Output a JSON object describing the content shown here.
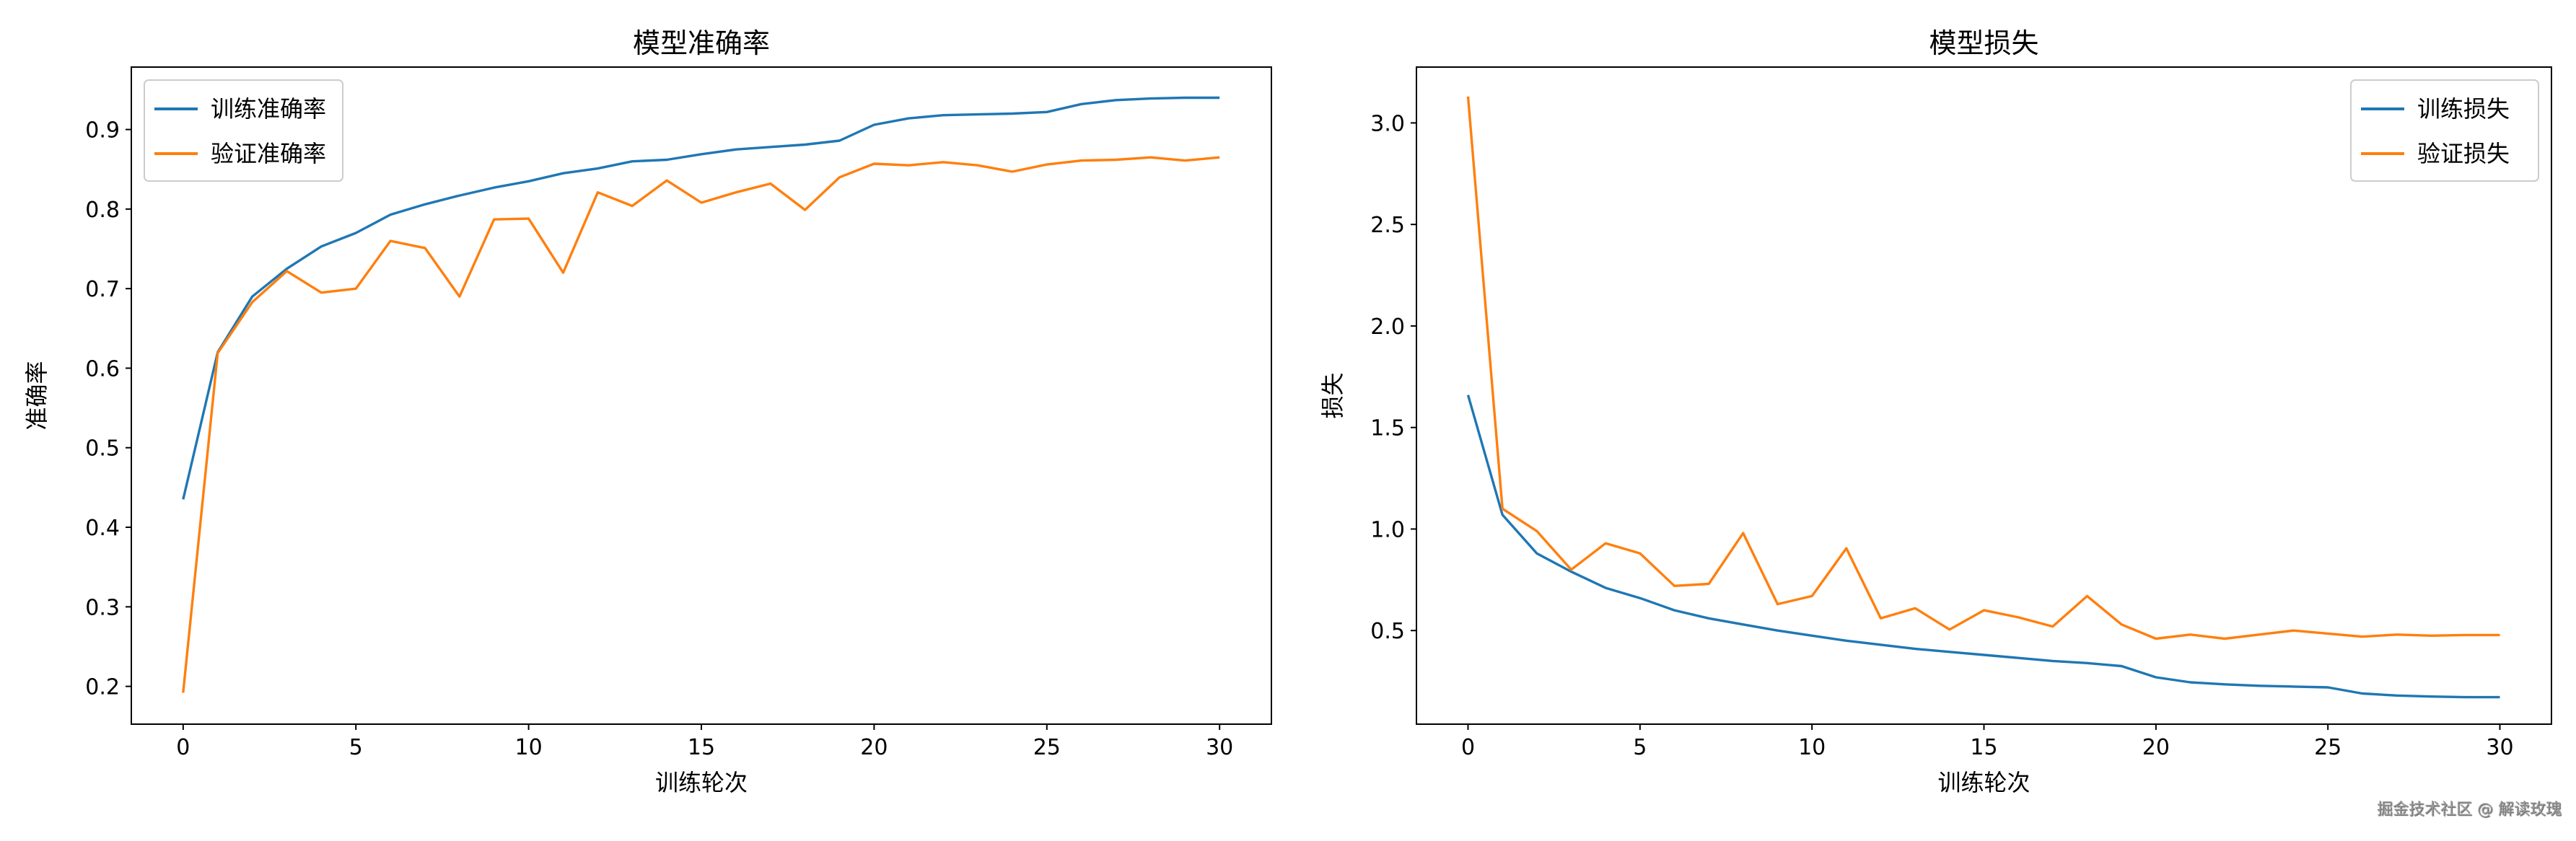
{
  "watermark": "掘金技术社区 @ 解读玫瑰",
  "colors": {
    "train": "#1f77b4",
    "val": "#ff7f0e"
  },
  "chart_data": [
    {
      "type": "line",
      "title": "模型准确率",
      "xlabel": "训练轮次",
      "ylabel": "准确率",
      "xlim": [
        -1.5,
        31.5
      ],
      "ylim": [
        0.1525,
        0.9785
      ],
      "xticks": [
        0,
        5,
        10,
        15,
        20,
        25,
        30
      ],
      "yticks": [
        0.2,
        0.3,
        0.4,
        0.5,
        0.6,
        0.7,
        0.8,
        0.9
      ],
      "legend": "upper-left",
      "x": [
        0,
        1,
        2,
        3,
        4,
        5,
        6,
        7,
        8,
        9,
        10,
        11,
        12,
        13,
        14,
        15,
        16,
        17,
        18,
        19,
        20,
        21,
        22,
        23,
        24,
        25,
        26,
        27,
        28,
        29,
        30
      ],
      "series": [
        {
          "name": "训练准确率",
          "color": "#1f77b4",
          "values": [
            0.435,
            0.62,
            0.69,
            0.725,
            0.753,
            0.77,
            0.793,
            0.806,
            0.817,
            0.827,
            0.835,
            0.845,
            0.851,
            0.86,
            0.862,
            0.869,
            0.875,
            0.878,
            0.881,
            0.886,
            0.906,
            0.914,
            0.918,
            0.919,
            0.92,
            0.922,
            0.932,
            0.937,
            0.939,
            0.94,
            0.94
          ]
        },
        {
          "name": "验证准确率",
          "color": "#ff7f0e",
          "values": [
            0.192,
            0.619,
            0.683,
            0.722,
            0.695,
            0.7,
            0.76,
            0.751,
            0.69,
            0.787,
            0.788,
            0.72,
            0.821,
            0.804,
            0.836,
            0.808,
            0.821,
            0.832,
            0.799,
            0.84,
            0.857,
            0.855,
            0.859,
            0.855,
            0.847,
            0.856,
            0.861,
            0.862,
            0.865,
            0.861,
            0.865
          ]
        }
      ]
    },
    {
      "type": "line",
      "title": "模型损失",
      "xlabel": "训练轮次",
      "ylabel": "损失",
      "xlim": [
        -1.5,
        31.5
      ],
      "ylim": [
        0.039,
        3.275
      ],
      "xticks": [
        0,
        5,
        10,
        15,
        20,
        25,
        30
      ],
      "yticks": [
        0.5,
        1.0,
        1.5,
        2.0,
        2.5,
        3.0
      ],
      "legend": "upper-right",
      "x": [
        0,
        1,
        2,
        3,
        4,
        5,
        6,
        7,
        8,
        9,
        10,
        11,
        12,
        13,
        14,
        15,
        16,
        17,
        18,
        19,
        20,
        21,
        22,
        23,
        24,
        25,
        26,
        27,
        28,
        29,
        30
      ],
      "series": [
        {
          "name": "训练损失",
          "color": "#1f77b4",
          "values": [
            1.66,
            1.07,
            0.88,
            0.79,
            0.71,
            0.66,
            0.6,
            0.56,
            0.53,
            0.5,
            0.475,
            0.45,
            0.43,
            0.41,
            0.395,
            0.38,
            0.365,
            0.35,
            0.34,
            0.325,
            0.27,
            0.245,
            0.235,
            0.228,
            0.224,
            0.22,
            0.19,
            0.18,
            0.175,
            0.172,
            0.172
          ]
        },
        {
          "name": "验证损失",
          "color": "#ff7f0e",
          "values": [
            3.13,
            1.1,
            0.99,
            0.8,
            0.93,
            0.88,
            0.72,
            0.73,
            0.98,
            0.63,
            0.67,
            0.905,
            0.56,
            0.61,
            0.505,
            0.6,
            0.565,
            0.52,
            0.67,
            0.53,
            0.46,
            0.48,
            0.46,
            0.48,
            0.5,
            0.485,
            0.47,
            0.48,
            0.475,
            0.478,
            0.478
          ]
        }
      ]
    }
  ]
}
